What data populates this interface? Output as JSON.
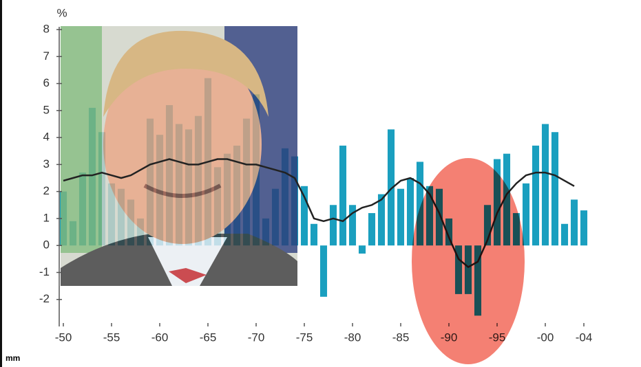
{
  "chart_data": {
    "type": "bar",
    "y_label": "%",
    "footnote": "mm",
    "x": [
      1950,
      1951,
      1952,
      1953,
      1954,
      1955,
      1956,
      1957,
      1958,
      1959,
      1960,
      1961,
      1962,
      1963,
      1964,
      1965,
      1966,
      1967,
      1968,
      1969,
      1970,
      1971,
      1972,
      1973,
      1974,
      1975,
      1976,
      1977,
      1978,
      1979,
      1980,
      1981,
      1982,
      1983,
      1984,
      1985,
      1986,
      1987,
      1988,
      1989,
      1990,
      1991,
      1992,
      1993,
      1994,
      1995,
      1996,
      1997,
      1998,
      1999,
      2000,
      2001,
      2002,
      2003,
      2004
    ],
    "series": [
      {
        "color": "#1a9fbf",
        "values": [
          2.0,
          0.9,
          2.7,
          5.1,
          4.2,
          2.3,
          2.1,
          1.7,
          1.0,
          4.7,
          4.1,
          5.2,
          4.5,
          4.3,
          4.8,
          6.2,
          2.9,
          3.4,
          3.7,
          4.7,
          5.6,
          1.0,
          2.1,
          3.6,
          3.3,
          2.2,
          0.8,
          -1.9,
          1.5,
          3.7,
          1.5,
          -0.3,
          1.2,
          1.9,
          4.3,
          2.1,
          2.5,
          3.1,
          2.2,
          2.1,
          1.0,
          -1.8,
          -1.8,
          -2.6,
          1.5,
          3.2,
          3.4,
          1.2,
          2.3,
          3.7,
          4.5,
          4.2,
          0.8,
          1.7,
          1.3
        ]
      },
      {
        "color": "#222222",
        "line": true,
        "values": [
          2.4,
          2.5,
          2.6,
          2.6,
          2.7,
          2.6,
          2.5,
          2.6,
          2.8,
          3.0,
          3.1,
          3.2,
          3.1,
          3.0,
          3.0,
          3.1,
          3.2,
          3.2,
          3.1,
          3.0,
          3.0,
          2.9,
          2.8,
          2.7,
          2.5,
          1.8,
          1.0,
          0.9,
          1.0,
          0.9,
          1.2,
          1.4,
          1.5,
          1.7,
          2.1,
          2.4,
          2.5,
          2.3,
          1.9,
          1.2,
          0.3,
          -0.5,
          -0.8,
          -0.6,
          0.2,
          1.2,
          1.9,
          2.3,
          2.6,
          2.7,
          2.7,
          2.6,
          2.4,
          2.2,
          null
        ]
      }
    ],
    "xlim": [
      1950,
      2004
    ],
    "xticks": [
      {
        "value": 1950,
        "label": "-50"
      },
      {
        "value": 1955,
        "label": "-55"
      },
      {
        "value": 1960,
        "label": "-60"
      },
      {
        "value": 1965,
        "label": "-65"
      },
      {
        "value": 1970,
        "label": "-70"
      },
      {
        "value": 1975,
        "label": "-75"
      },
      {
        "value": 1980,
        "label": "-80"
      },
      {
        "value": 1985,
        "label": "-85"
      },
      {
        "value": 1990,
        "label": "-90"
      },
      {
        "value": 1995,
        "label": "-95"
      },
      {
        "value": 2000,
        "label": "-00"
      },
      {
        "value": 2004,
        "label": "-04"
      }
    ],
    "ylim": [
      -3,
      8
    ],
    "yticks": [
      -2,
      -1,
      0,
      1,
      2,
      3,
      4,
      5,
      6,
      7,
      8
    ]
  }
}
